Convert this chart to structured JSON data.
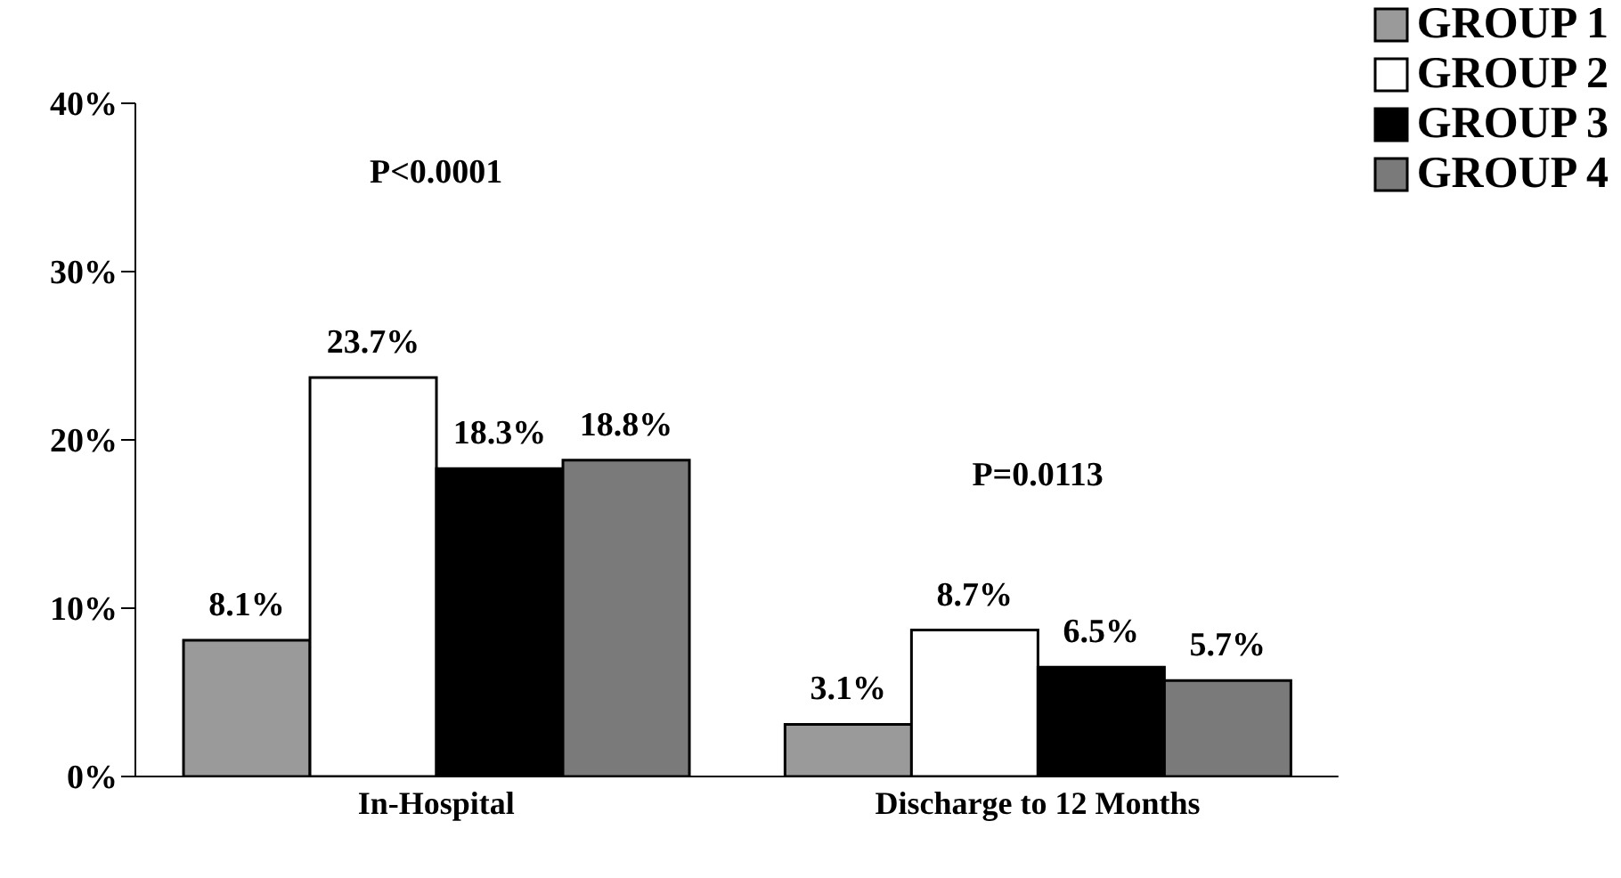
{
  "chart_data": {
    "type": "bar",
    "categories": [
      "In-Hospital",
      "Discharge to 12 Months"
    ],
    "series": [
      {
        "name": "GROUP 1",
        "color": "#9a9a9a",
        "values": [
          8.1,
          3.1
        ],
        "value_labels": [
          "8.1%",
          "3.1%"
        ]
      },
      {
        "name": "GROUP 2",
        "color": "#ffffff",
        "values": [
          23.7,
          8.7
        ],
        "value_labels": [
          "23.7%",
          "8.7%"
        ]
      },
      {
        "name": "GROUP 3",
        "color": "#000000",
        "values": [
          18.3,
          6.5
        ],
        "value_labels": [
          "18.3%",
          "6.5%"
        ]
      },
      {
        "name": "GROUP 4",
        "color": "#7a7a7a",
        "values": [
          18.8,
          5.7
        ],
        "value_labels": [
          "18.8%",
          "5.7%"
        ]
      }
    ],
    "ylim": [
      0,
      40
    ],
    "yticks": [
      {
        "value": 0,
        "label": "0%"
      },
      {
        "value": 10,
        "label": "10%"
      },
      {
        "value": 20,
        "label": "20%"
      },
      {
        "value": 30,
        "label": "30%"
      },
      {
        "value": 40,
        "label": "40%"
      }
    ],
    "annotations": [
      "P<0.0001",
      "P=0.0113"
    ],
    "grid": false,
    "legend": "top right"
  }
}
